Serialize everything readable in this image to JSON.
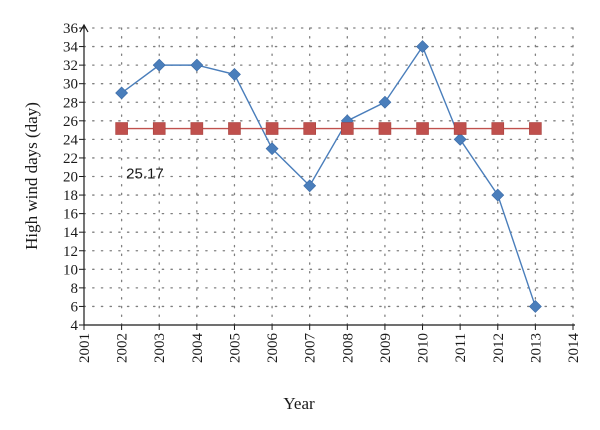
{
  "chart_data": {
    "type": "line",
    "xlabel": "Year",
    "ylabel": "High wind days (day)",
    "xlim": [
      2001,
      2014
    ],
    "ylim": [
      4,
      36
    ],
    "xticks": [
      "2001",
      "2002",
      "2003",
      "2004",
      "2005",
      "2006",
      "2007",
      "2008",
      "2009",
      "2010",
      "2011",
      "2012",
      "2013",
      "2014"
    ],
    "yticks": [
      "4",
      "6",
      "8",
      "10",
      "12",
      "14",
      "16",
      "18",
      "20",
      "22",
      "24",
      "26",
      "28",
      "30",
      "32",
      "34",
      "36"
    ],
    "grid": true,
    "x": [
      2002,
      2003,
      2004,
      2005,
      2006,
      2007,
      2008,
      2009,
      2010,
      2011,
      2012,
      2013
    ],
    "series": [
      {
        "values": [
          29,
          32,
          32,
          31,
          23,
          19,
          26,
          28,
          34,
          24,
          18,
          6
        ],
        "color": "#4a7ebb",
        "marker": "diamond"
      },
      {
        "values": [
          25.17,
          25.17,
          25.17,
          25.17,
          25.17,
          25.17,
          25.17,
          25.17,
          25.17,
          25.17,
          25.17,
          25.17
        ],
        "color": "#c0504d",
        "marker": "square"
      }
    ],
    "annotations": [
      {
        "text": "25.17",
        "x": 2002.6,
        "y": 20.3
      }
    ]
  }
}
